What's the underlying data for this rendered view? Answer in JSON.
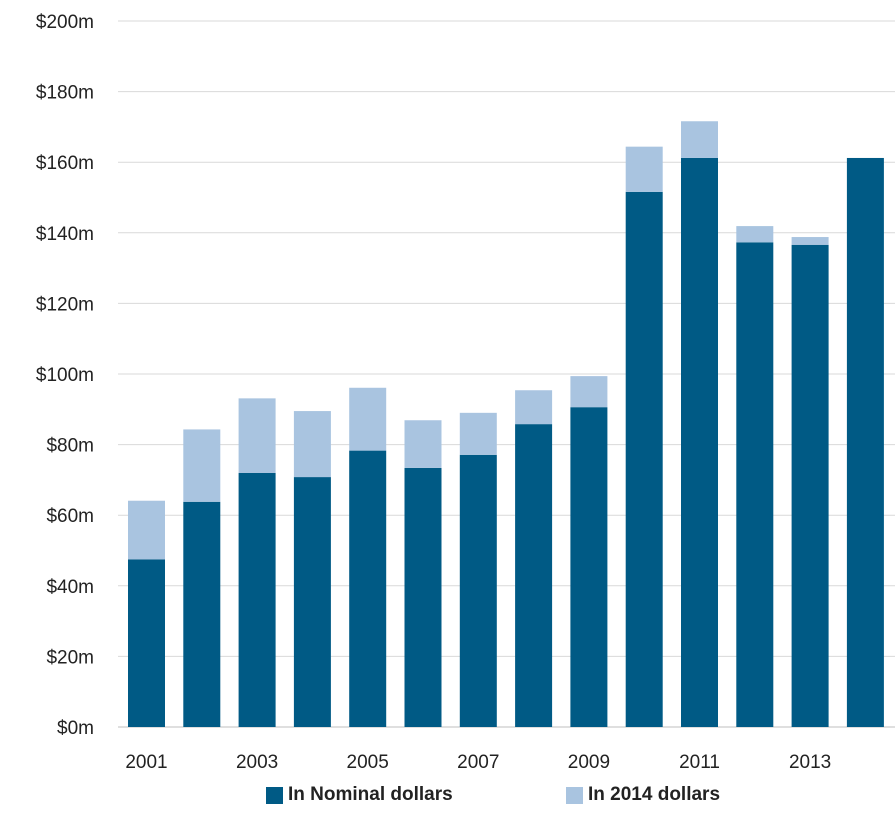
{
  "chart_data": {
    "type": "bar",
    "stacked": true,
    "categories": [
      "2001",
      "2002",
      "2003",
      "2004",
      "2005",
      "2006",
      "2007",
      "2008",
      "2009",
      "2010",
      "2011",
      "2012",
      "2013",
      "2014"
    ],
    "x_tick_labels": [
      "2001",
      "",
      "2003",
      "",
      "2005",
      "",
      "2007",
      "",
      "2009",
      "",
      "2011",
      "",
      "2013",
      ""
    ],
    "series": [
      {
        "name": "In Nominal dollars",
        "color": "#005a85",
        "values": [
          47.5,
          63.8,
          72.0,
          70.8,
          78.3,
          73.4,
          77.1,
          85.8,
          90.6,
          151.6,
          161.2,
          137.3,
          136.6,
          161.2
        ]
      },
      {
        "name": "In 2014 dollars",
        "color": "#a9c4e0",
        "values": [
          16.6,
          20.5,
          21.1,
          18.7,
          17.8,
          13.5,
          11.9,
          9.6,
          8.8,
          12.8,
          10.4,
          4.6,
          2.2,
          0
        ]
      }
    ],
    "y_ticks": [
      "$0m",
      "$20m",
      "$40m",
      "$60m",
      "$80m",
      "$100m",
      "$120m",
      "$140m",
      "$160m",
      "$180m",
      "$200m"
    ],
    "ylim": [
      0,
      200
    ],
    "grid": true,
    "legend_position": "bottom"
  }
}
